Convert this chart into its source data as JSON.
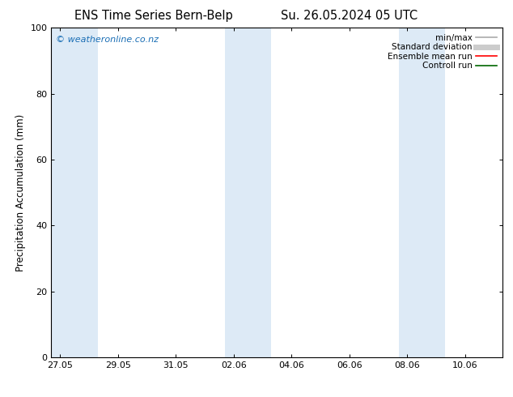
{
  "title_left": "ENS Time Series Bern-Belp",
  "title_right": "Su. 26.05.2024 05 UTC",
  "ylabel": "Precipitation Accumulation (mm)",
  "ylim": [
    0,
    100
  ],
  "yticks": [
    0,
    20,
    40,
    60,
    80,
    100
  ],
  "xtick_labels": [
    "27.05",
    "29.05",
    "31.05",
    "02.06",
    "04.06",
    "06.06",
    "08.06",
    "10.06"
  ],
  "xtick_positions": [
    0,
    2,
    4,
    6,
    8,
    10,
    12,
    14
  ],
  "xlim": [
    -0.3,
    15.3
  ],
  "bg_color": "#ffffff",
  "plot_bg_color": "#ffffff",
  "shaded_bands": [
    {
      "xmin": -0.3,
      "xmax": 1.3,
      "color": "#ddeaf6"
    },
    {
      "xmin": 5.7,
      "xmax": 7.3,
      "color": "#ddeaf6"
    },
    {
      "xmin": 11.7,
      "xmax": 13.3,
      "color": "#ddeaf6"
    }
  ],
  "watermark_text": "© weatheronline.co.nz",
  "watermark_color": "#1a6eb5",
  "legend_entries": [
    {
      "label": "min/max",
      "color": "#aaaaaa",
      "lw": 1.2,
      "style": "solid"
    },
    {
      "label": "Standard deviation",
      "color": "#cccccc",
      "lw": 5,
      "style": "solid"
    },
    {
      "label": "Ensemble mean run",
      "color": "#ff0000",
      "lw": 1.2,
      "style": "solid"
    },
    {
      "label": "Controll run",
      "color": "#006600",
      "lw": 1.2,
      "style": "solid"
    }
  ],
  "title_fontsize": 10.5,
  "axis_label_fontsize": 8.5,
  "tick_fontsize": 8,
  "legend_fontsize": 7.5,
  "watermark_fontsize": 8
}
